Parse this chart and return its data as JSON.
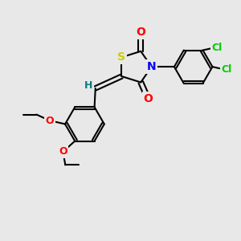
{
  "bg_color": "#e8e8e8",
  "bond_color": "#000000",
  "bond_width": 1.5,
  "atom_colors": {
    "S": "#cccc00",
    "N": "#0000ff",
    "O": "#ff0000",
    "Cl": "#00cc00",
    "H": "#008080",
    "C": "#000000"
  },
  "font_size": 9,
  "figsize": [
    3.0,
    3.0
  ],
  "dpi": 100,
  "xlim": [
    0,
    10
  ],
  "ylim": [
    0,
    10
  ]
}
